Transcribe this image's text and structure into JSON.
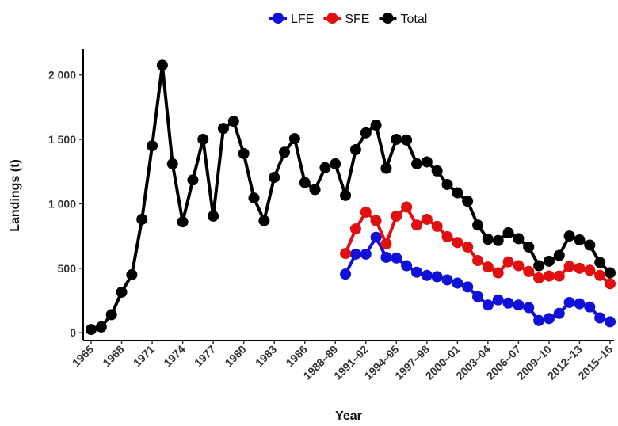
{
  "chart_data": {
    "type": "line",
    "x_label": "Year",
    "y_label": "Landings (t)",
    "legend": "top",
    "categories": [
      "1965",
      null,
      null,
      "1968",
      null,
      null,
      "1971",
      null,
      null,
      "1974",
      null,
      null,
      "1977",
      null,
      null,
      "1980",
      null,
      null,
      "1983",
      null,
      null,
      "1986",
      null,
      null,
      "1988–89",
      null,
      null,
      "1991–92",
      null,
      null,
      "1994–95",
      null,
      null,
      "1997–98",
      null,
      null,
      "2000–01",
      null,
      null,
      "2003–04",
      null,
      null,
      "2006–07",
      null,
      null,
      "2009–10",
      null,
      null,
      "2012–13",
      null,
      null,
      "2015–16"
    ],
    "series": [
      {
        "name": "LFE",
        "color": "#1010d8",
        "values": [
          null,
          null,
          null,
          null,
          null,
          null,
          null,
          null,
          null,
          null,
          null,
          null,
          null,
          null,
          null,
          null,
          null,
          null,
          null,
          null,
          null,
          null,
          null,
          null,
          null,
          455,
          610,
          610,
          740,
          585,
          580,
          520,
          470,
          445,
          435,
          410,
          385,
          355,
          280,
          215,
          255,
          230,
          215,
          195,
          95,
          110,
          150,
          235,
          225,
          200,
          115,
          85
        ]
      },
      {
        "name": "SFE",
        "color": "#e01010",
        "values": [
          null,
          null,
          null,
          null,
          null,
          null,
          null,
          null,
          null,
          null,
          null,
          null,
          null,
          null,
          null,
          null,
          null,
          null,
          null,
          null,
          null,
          null,
          null,
          null,
          null,
          615,
          805,
          935,
          870,
          690,
          905,
          975,
          835,
          880,
          825,
          745,
          700,
          665,
          560,
          510,
          465,
          550,
          520,
          475,
          425,
          440,
          440,
          515,
          500,
          485,
          445,
          380
        ]
      },
      {
        "name": "Total",
        "color": "#000000",
        "values": [
          25,
          45,
          140,
          315,
          450,
          880,
          1450,
          2075,
          1310,
          860,
          1185,
          1500,
          905,
          1585,
          1640,
          1390,
          1045,
          870,
          1205,
          1400,
          1505,
          1165,
          1110,
          1280,
          1310,
          1065,
          1420,
          1550,
          1610,
          1275,
          1500,
          1495,
          1310,
          1325,
          1255,
          1150,
          1085,
          1020,
          835,
          725,
          715,
          775,
          730,
          665,
          520,
          555,
          600,
          750,
          720,
          680,
          545,
          465
        ]
      }
    ],
    "ylim": [
      -60,
      2200
    ],
    "yticks": [
      0,
      500,
      {
        "value": 1000,
        "label": "1 000"
      },
      {
        "value": 1500,
        "label": "1 500"
      },
      {
        "value": 2000,
        "label": "2 000"
      }
    ]
  }
}
